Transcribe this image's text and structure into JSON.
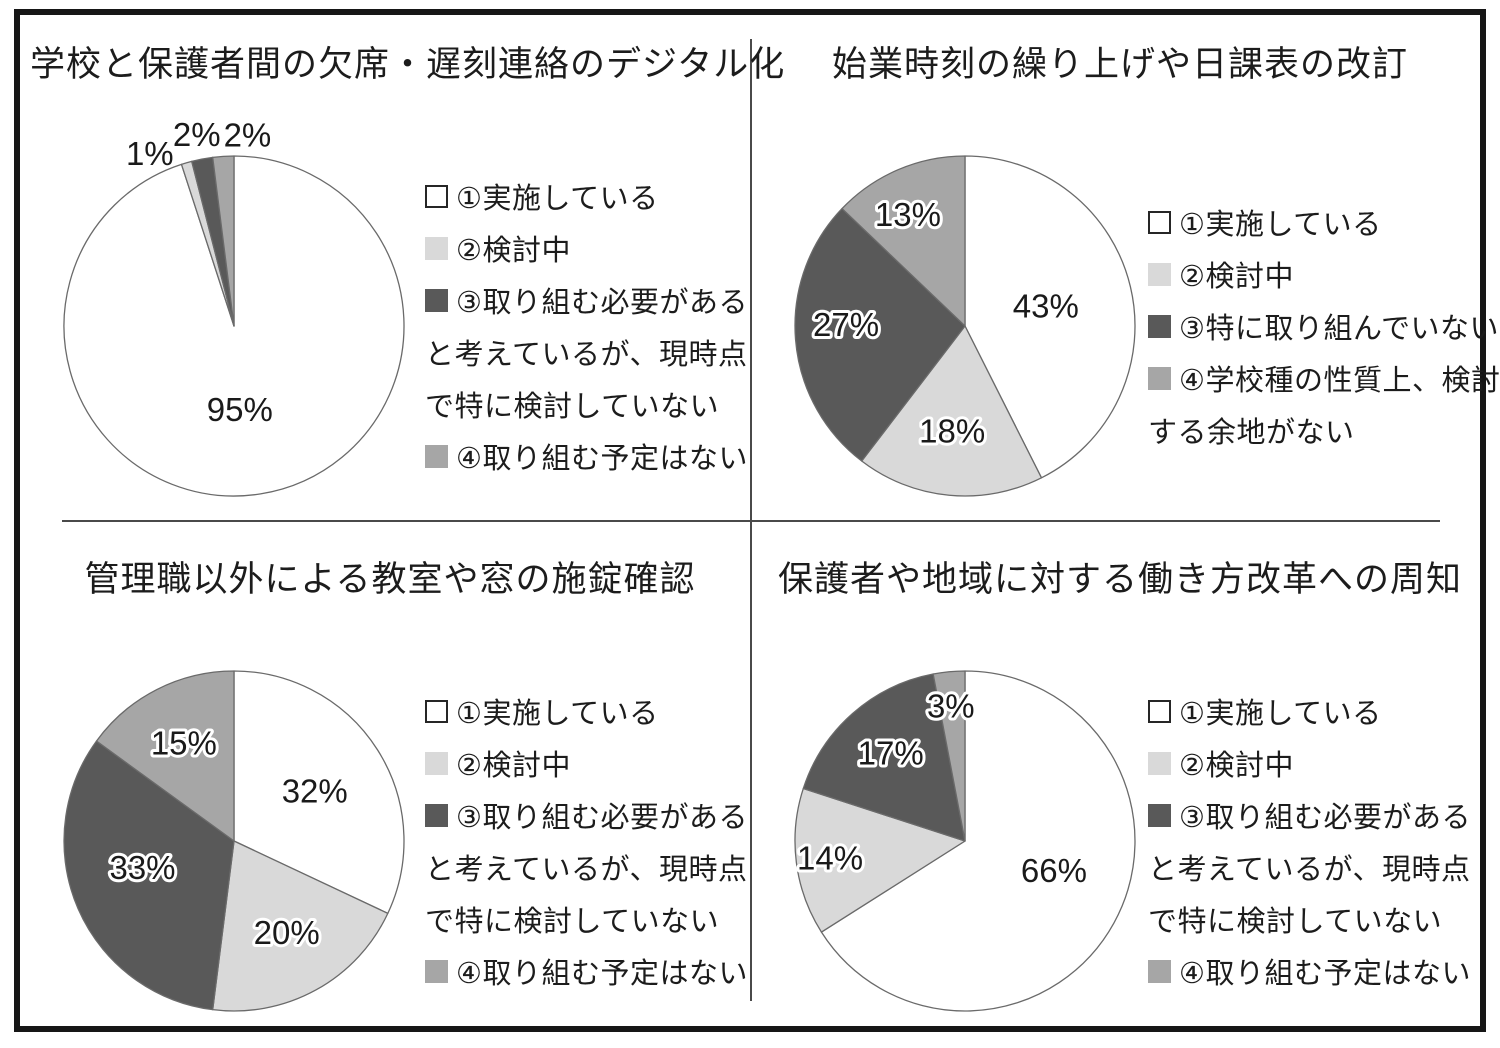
{
  "page": {
    "background": "#ffffff",
    "frame_color": "#161616",
    "divider_color": "#4a4a4a"
  },
  "chart_data": [
    {
      "type": "pie",
      "title": "学校と保護者間の欠席・遅刻連絡のデジタル化",
      "labels": [
        "①実施している",
        "②検討中",
        "③取り組む必要があると考えているが、現時点で特に検討していない",
        "④取り組む予定はない"
      ],
      "values": [
        95,
        1,
        2,
        2
      ],
      "unit": "%",
      "data_labels": [
        "95%",
        "1%",
        "2%",
        "2%"
      ],
      "colors": [
        "#ffffff",
        "#d9d9d9",
        "#595959",
        "#a6a6a6"
      ],
      "start_angle": 0,
      "direction": "clockwise",
      "legend_position": "right",
      "legend_lines": [
        {
          "swatch": 0,
          "text": "①実施している"
        },
        {
          "swatch": 1,
          "text": "②検討中"
        },
        {
          "swatch": 2,
          "text": "③取り組む必要がある"
        },
        {
          "swatch": -1,
          "text": "と考えているが、現時点"
        },
        {
          "swatch": -1,
          "text": "で特に検討していない"
        },
        {
          "swatch": 3,
          "text": "④取り組む予定はない"
        }
      ],
      "label_layout": [
        {
          "angle": 176,
          "r": 0.49,
          "halo": false
        },
        {
          "angle": 334,
          "r": 1.13,
          "halo": false
        },
        {
          "angle": 349,
          "r": 1.15,
          "halo": false
        },
        {
          "angle": 4,
          "r": 1.13,
          "halo": false
        }
      ]
    },
    {
      "type": "pie",
      "title": "始業時刻の繰り上げや日課表の改訂",
      "labels": [
        "①実施している",
        "②検討中",
        "③特に取り組んでいない",
        "④学校種の性質上、検討する余地がない"
      ],
      "values": [
        43,
        18,
        27,
        13
      ],
      "unit": "%",
      "data_labels": [
        "43%",
        "18%",
        "27%",
        "13%"
      ],
      "colors": [
        "#ffffff",
        "#d9d9d9",
        "#595959",
        "#a6a6a6"
      ],
      "start_angle": 0,
      "direction": "clockwise",
      "legend_position": "right",
      "legend_lines": [
        {
          "swatch": 0,
          "text": "①実施している"
        },
        {
          "swatch": 1,
          "text": "②検討中"
        },
        {
          "swatch": 2,
          "text": "③特に取り組んでいない"
        },
        {
          "swatch": 3,
          "text": "④学校種の性質上、検討"
        },
        {
          "swatch": -1,
          "text": "する余地がない"
        }
      ],
      "label_layout": [
        {
          "angle": 76,
          "r": 0.49,
          "halo": false
        },
        {
          "angle": 187,
          "r": 0.62,
          "halo": true
        },
        {
          "angle": 271,
          "r": 0.7,
          "halo": true
        },
        {
          "angle": 333,
          "r": 0.74,
          "halo": true
        }
      ]
    },
    {
      "type": "pie",
      "title": "管理職以外による教室や窓の施錠確認",
      "labels": [
        "①実施している",
        "②検討中",
        "③取り組む必要があると考えているが、現時点で特に検討していない",
        "④取り組む予定はない"
      ],
      "values": [
        32,
        20,
        33,
        15
      ],
      "unit": "%",
      "data_labels": [
        "32%",
        "20%",
        "33%",
        "15%"
      ],
      "colors": [
        "#ffffff",
        "#d9d9d9",
        "#595959",
        "#a6a6a6"
      ],
      "start_angle": 0,
      "direction": "clockwise",
      "legend_position": "right",
      "legend_lines": [
        {
          "swatch": 0,
          "text": "①実施している"
        },
        {
          "swatch": 1,
          "text": "②検討中"
        },
        {
          "swatch": 2,
          "text": "③取り組む必要がある"
        },
        {
          "swatch": -1,
          "text": "と考えているが、現時点"
        },
        {
          "swatch": -1,
          "text": "で特に検討していない"
        },
        {
          "swatch": 3,
          "text": "④取り組む予定はない"
        }
      ],
      "label_layout": [
        {
          "angle": 58,
          "r": 0.56,
          "halo": false
        },
        {
          "angle": 150,
          "r": 0.62,
          "halo": true
        },
        {
          "angle": 254,
          "r": 0.56,
          "halo": true
        },
        {
          "angle": 333,
          "r": 0.65,
          "halo": true
        }
      ]
    },
    {
      "type": "pie",
      "title": "保護者や地域に対する働き方改革への周知",
      "labels": [
        "①実施している",
        "②検討中",
        "③取り組む必要があると考えているが、現時点で特に検討していない",
        "④取り組む予定はない"
      ],
      "values": [
        66,
        14,
        17,
        3
      ],
      "unit": "%",
      "data_labels": [
        "66%",
        "14%",
        "17%",
        "3%"
      ],
      "colors": [
        "#ffffff",
        "#d9d9d9",
        "#595959",
        "#a6a6a6"
      ],
      "start_angle": 0,
      "direction": "clockwise",
      "legend_position": "right",
      "legend_lines": [
        {
          "swatch": 0,
          "text": "①実施している"
        },
        {
          "swatch": 1,
          "text": "②検討中"
        },
        {
          "swatch": 2,
          "text": "③取り組む必要がある"
        },
        {
          "swatch": -1,
          "text": "と考えているが、現時点"
        },
        {
          "swatch": -1,
          "text": "で特に検討していない"
        },
        {
          "swatch": 3,
          "text": "④取り組む予定はない"
        }
      ],
      "label_layout": [
        {
          "angle": 108,
          "r": 0.55,
          "halo": false
        },
        {
          "angle": 263,
          "r": 0.8,
          "halo": true
        },
        {
          "angle": 320,
          "r": 0.68,
          "halo": true
        },
        {
          "angle": 354,
          "r": 0.8,
          "halo": true
        }
      ]
    }
  ]
}
